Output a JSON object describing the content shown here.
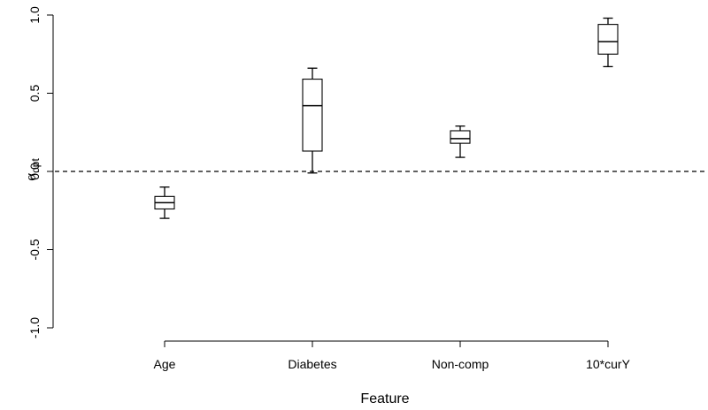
{
  "chart_data": {
    "type": "boxplot",
    "title": "",
    "xlabel": "Feature",
    "ylabel": {
      "symbol": "α",
      "subscript": "opt"
    },
    "categories": [
      "Age",
      "Diabetes",
      "Non-comp",
      "10*curY"
    ],
    "boxes": [
      {
        "category": "Age",
        "whisker_low": -0.3,
        "q1": -0.24,
        "median": -0.2,
        "q3": -0.16,
        "whisker_high": -0.1
      },
      {
        "category": "Diabetes",
        "whisker_low": -0.01,
        "q1": 0.13,
        "median": 0.42,
        "q3": 0.59,
        "whisker_high": 0.66
      },
      {
        "category": "Non-comp",
        "whisker_low": 0.09,
        "q1": 0.18,
        "median": 0.21,
        "q3": 0.26,
        "whisker_high": 0.29
      },
      {
        "category": "10*curY",
        "whisker_low": 0.67,
        "q1": 0.75,
        "median": 0.83,
        "q3": 0.94,
        "whisker_high": 0.98
      }
    ],
    "ylim": [
      -1.0,
      1.0
    ],
    "yticks": [
      "-1.0",
      "-0.5",
      "0.0",
      "0.5",
      "1.0"
    ],
    "reference_line": {
      "y": 0.0,
      "style": "dashed"
    },
    "grid": false
  }
}
